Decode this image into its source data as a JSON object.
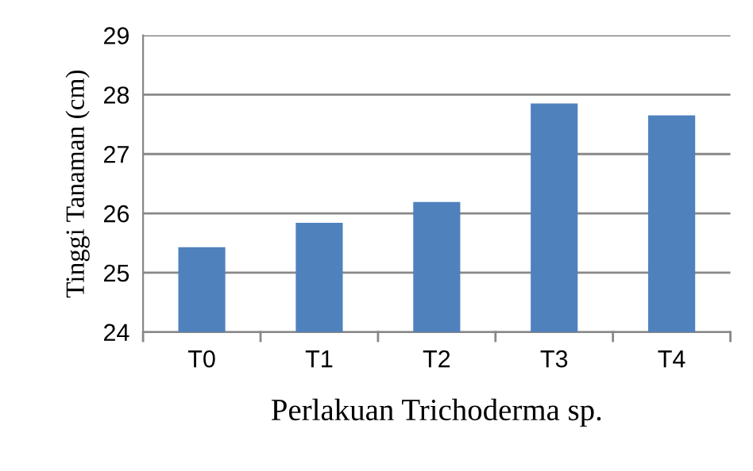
{
  "chart_data": {
    "type": "bar",
    "xlabel": "Perlakuan Trichoderma sp.",
    "ylabel": "Tinggi Tanaman (cm)",
    "categories": [
      "T0",
      "T1",
      "T2",
      "T3",
      "T4"
    ],
    "values": [
      25.43,
      25.84,
      26.19,
      27.85,
      27.65
    ],
    "color": "#4f81bd",
    "ylim": [
      24,
      29
    ],
    "yticks": [
      24,
      25,
      26,
      27,
      28,
      29
    ],
    "grid": "y"
  }
}
